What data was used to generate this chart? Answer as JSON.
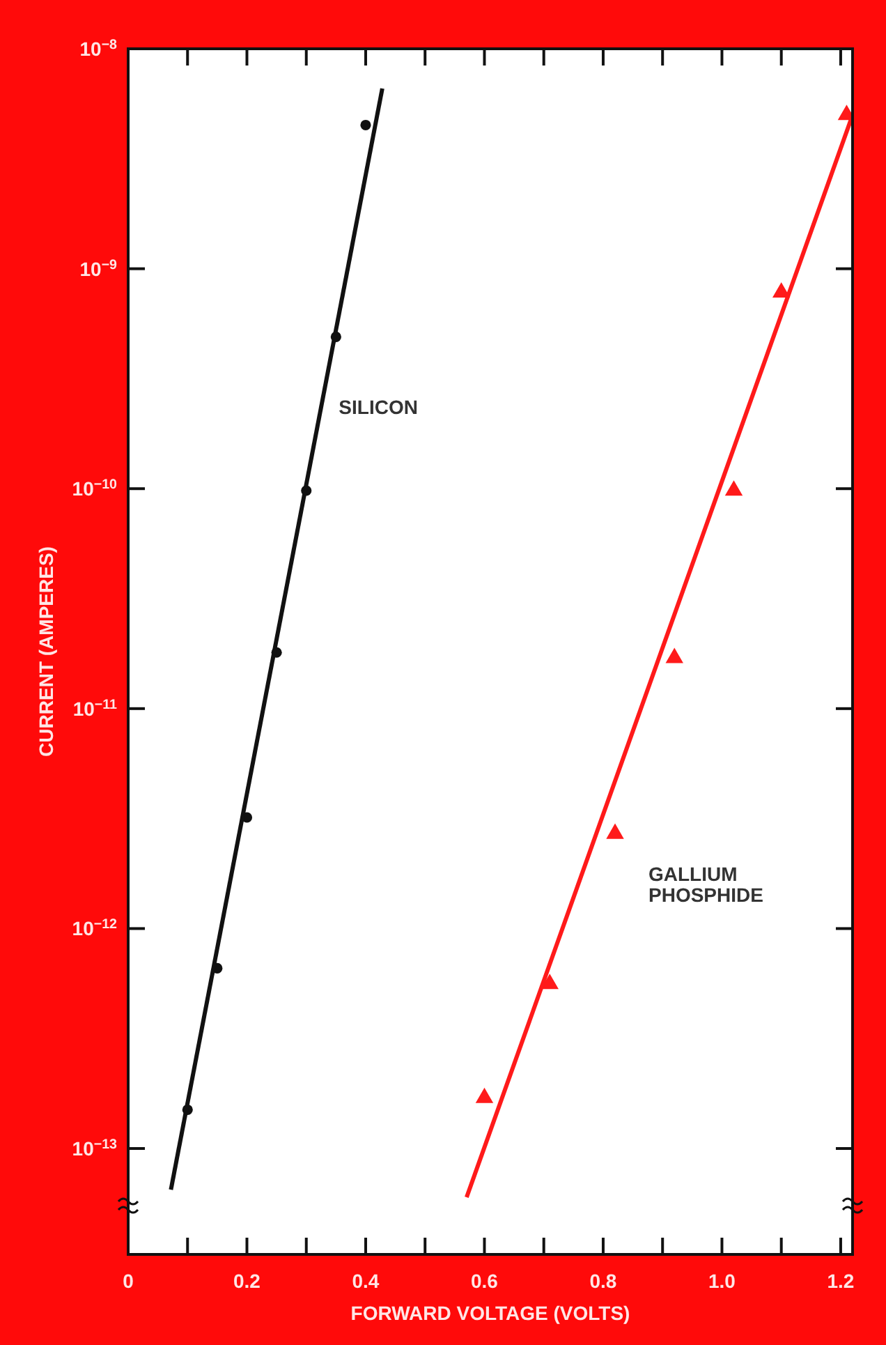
{
  "chart_data": {
    "type": "scatter",
    "xlabel": "FORWARD VOLTAGE (VOLTS)",
    "ylabel": "CURRENT (AMPERES)",
    "log": "y",
    "grid": false,
    "xlim": [
      0,
      1.22
    ],
    "ylim": [
      3.3e-14,
      1e-08
    ],
    "xticks": [
      0,
      {
        "value": 0.1,
        "label": null
      },
      0.2,
      {
        "value": 0.3,
        "label": null
      },
      0.4,
      {
        "value": 0.5,
        "label": null
      },
      0.6,
      {
        "value": 0.7,
        "label": null
      },
      0.8,
      {
        "value": 0.9,
        "label": null
      },
      {
        "value": 1.0,
        "label": "1.0"
      },
      {
        "value": 1.1,
        "label": null
      },
      1.2
    ],
    "yticks": [
      {
        "value": 1e-13,
        "label": "10$^{−13}$"
      },
      {
        "value": 1e-12,
        "label": "10$^{−12}$"
      },
      {
        "value": 1e-11,
        "label": "10$^{−11}$"
      },
      {
        "value": 1e-10,
        "label": "10$^{−10}$"
      },
      {
        "value": 1e-09,
        "label": "10$^{−9}$"
      },
      {
        "value": 1e-08,
        "label": "10$^{−8}$"
      }
    ],
    "series": [
      {
        "name": "SILICON",
        "marker": "circle",
        "color": "#111111",
        "x": [
          0.1,
          0.15,
          0.2,
          0.25,
          0.3,
          0.35,
          0.4
        ],
        "values": [
          1.5e-13,
          6.6e-13,
          3.2e-12,
          1.8e-11,
          9.8e-11,
          4.9e-10,
          4.5e-09
        ]
      },
      {
        "type": "line",
        "marker": "none",
        "color": "#111111",
        "x": [
          0.072,
          0.428
        ],
        "values": [
          6.5e-14,
          6.6e-09
        ]
      },
      {
        "name": "GALLIUM PHOSPHIDE",
        "marker": "triangle",
        "color": "#ff1a1a",
        "x": [
          0.6,
          0.71,
          0.82,
          0.92,
          1.02,
          1.1,
          1.21
        ],
        "values": [
          1.7e-13,
          5.6e-13,
          2.7e-12,
          1.7e-11,
          9.8e-11,
          7.8e-10,
          5e-09
        ]
      },
      {
        "type": "line",
        "marker": "none",
        "color": "#ff1a1a",
        "x": [
          0.57,
          1.22
        ],
        "values": [
          6e-14,
          5e-09
        ]
      }
    ]
  }
}
